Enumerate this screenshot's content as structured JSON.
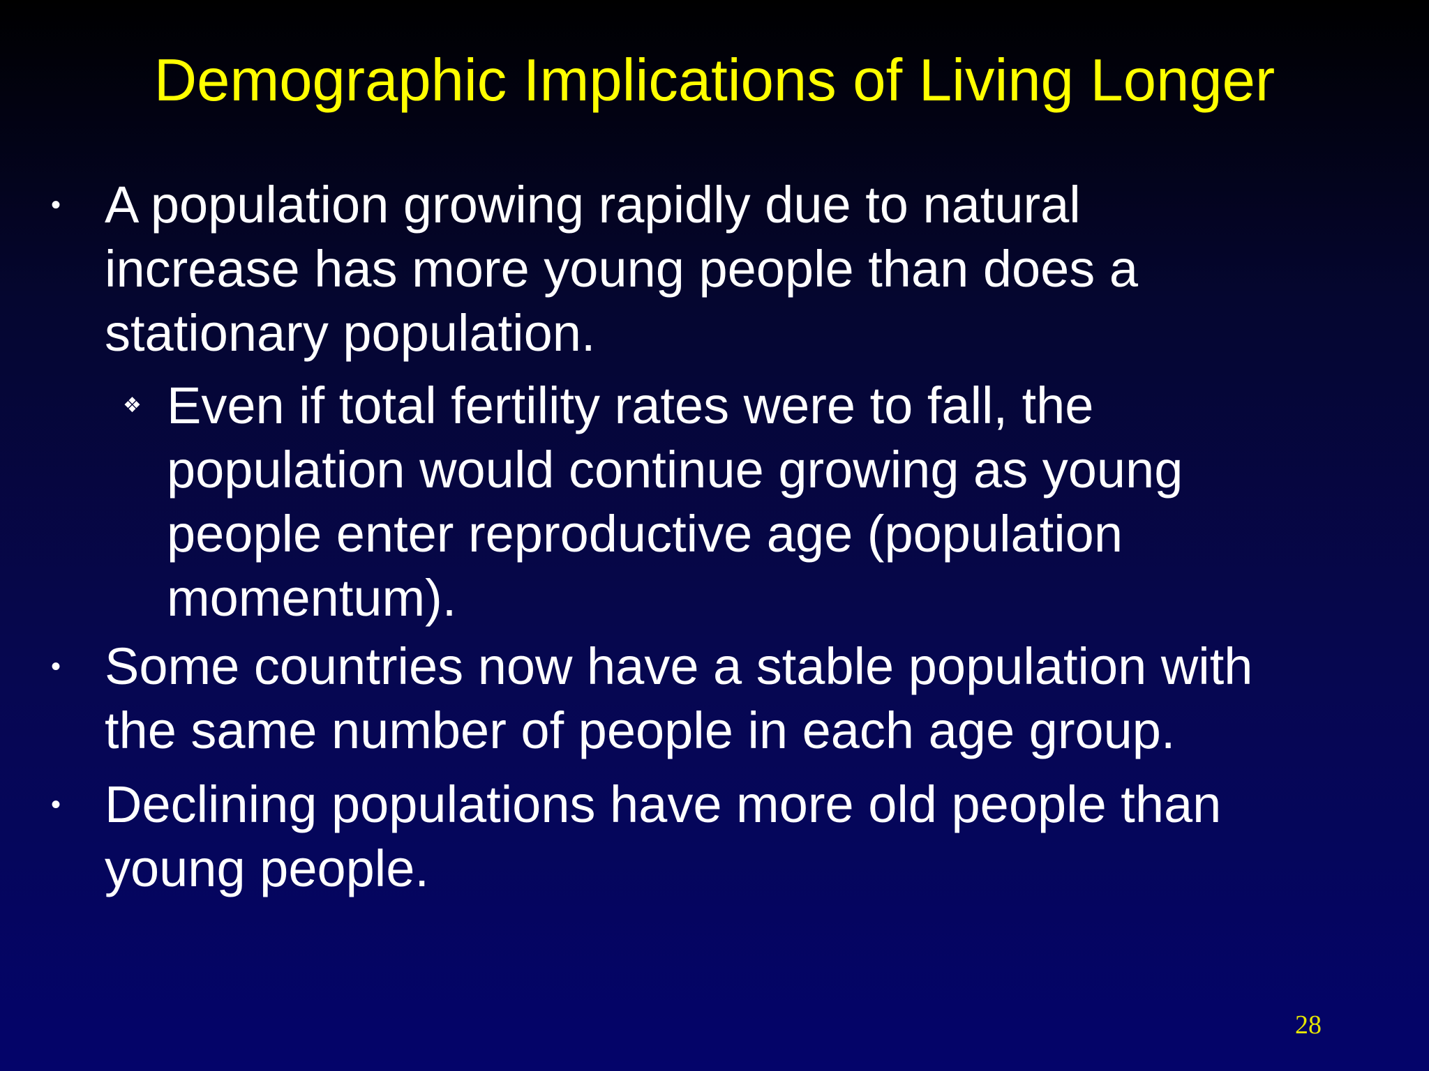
{
  "slide": {
    "title": "Demographic Implications of Living Longer",
    "bullets": [
      {
        "marker": "•",
        "text": "A population growing rapidly due to natural\nincrease has more young people than does a\nstationary population.",
        "sub": {
          "marker": "❖",
          "text": "Even if total fertility rates were to fall, the\npopulation would continue growing as young\npeople enter reproductive age (population\nmomentum)."
        }
      },
      {
        "marker": "•",
        "text": "Some countries now have a stable population with\nthe same number of people in each age group."
      },
      {
        "marker": "•",
        "text": "Declining populations have more old people than\nyoung people."
      }
    ],
    "page_number": "28",
    "colors": {
      "title": "#ffff00",
      "body_text": "#ffffff",
      "page_number": "#e6e600",
      "background_top": "#000000",
      "background_bottom": "#04046a"
    }
  }
}
